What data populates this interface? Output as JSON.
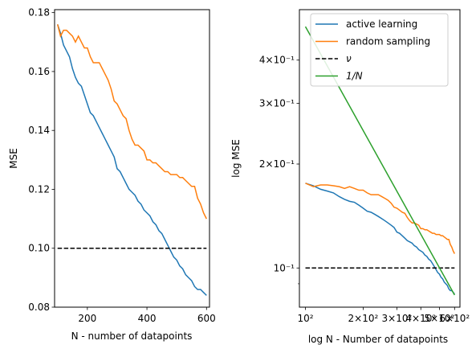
{
  "chart_data": [
    {
      "type": "line",
      "xlabel": "N - number of datapoints",
      "ylabel": "MSE",
      "xlim": [
        90,
        610
      ],
      "ylim": [
        0.08,
        0.181
      ],
      "xticks": [
        200,
        400,
        600
      ],
      "xtick_labels": [
        "200",
        "400",
        "600"
      ],
      "yticks": [
        0.08,
        0.1,
        0.12,
        0.14,
        0.16,
        0.18
      ],
      "ytick_labels": [
        "0.08",
        "0.10",
        "0.12",
        "0.14",
        "0.16",
        "0.18"
      ],
      "series": [
        {
          "name": "active learning",
          "color": "#1f77b4",
          "style": "solid",
          "x": [
            100,
            110,
            120,
            130,
            140,
            150,
            160,
            170,
            180,
            190,
            200,
            210,
            220,
            230,
            240,
            250,
            260,
            270,
            280,
            290,
            300,
            310,
            320,
            330,
            340,
            350,
            360,
            370,
            380,
            390,
            400,
            410,
            420,
            430,
            440,
            450,
            460,
            470,
            480,
            490,
            500,
            510,
            520,
            530,
            540,
            550,
            560,
            570,
            580,
            590,
            600
          ],
          "y": [
            0.176,
            0.173,
            0.169,
            0.167,
            0.165,
            0.161,
            0.158,
            0.156,
            0.155,
            0.152,
            0.149,
            0.146,
            0.145,
            0.143,
            0.141,
            0.139,
            0.137,
            0.135,
            0.133,
            0.131,
            0.127,
            0.126,
            0.124,
            0.122,
            0.12,
            0.119,
            0.118,
            0.116,
            0.115,
            0.113,
            0.112,
            0.111,
            0.109,
            0.108,
            0.106,
            0.105,
            0.103,
            0.101,
            0.099,
            0.097,
            0.096,
            0.094,
            0.093,
            0.091,
            0.09,
            0.089,
            0.087,
            0.086,
            0.086,
            0.085,
            0.084
          ]
        },
        {
          "name": "random sampling",
          "color": "#ff7f0e",
          "style": "solid",
          "x": [
            100,
            110,
            120,
            130,
            140,
            150,
            160,
            170,
            180,
            190,
            200,
            210,
            220,
            230,
            240,
            250,
            260,
            270,
            280,
            290,
            300,
            310,
            320,
            330,
            340,
            350,
            360,
            370,
            380,
            390,
            400,
            410,
            420,
            430,
            440,
            450,
            460,
            470,
            480,
            490,
            500,
            510,
            520,
            530,
            540,
            550,
            560,
            570,
            580,
            590,
            600
          ],
          "y": [
            0.176,
            0.172,
            0.174,
            0.174,
            0.173,
            0.172,
            0.17,
            0.172,
            0.17,
            0.168,
            0.168,
            0.165,
            0.163,
            0.163,
            0.163,
            0.161,
            0.159,
            0.157,
            0.154,
            0.15,
            0.149,
            0.147,
            0.145,
            0.144,
            0.14,
            0.137,
            0.135,
            0.135,
            0.134,
            0.133,
            0.13,
            0.13,
            0.129,
            0.129,
            0.128,
            0.127,
            0.126,
            0.126,
            0.125,
            0.125,
            0.125,
            0.124,
            0.124,
            0.123,
            0.122,
            0.121,
            0.121,
            0.117,
            0.115,
            0.112,
            0.11
          ]
        },
        {
          "name": "ν",
          "color": "#000000",
          "style": "dashed",
          "x": [
            100,
            600
          ],
          "y": [
            0.1,
            0.1
          ]
        }
      ]
    },
    {
      "type": "line",
      "xscale": "log",
      "yscale": "log",
      "xlabel": "log N - Number of datapoints",
      "ylabel": "log MSE",
      "xlim": [
        93,
        640
      ],
      "ylim": [
        0.077,
        0.56
      ],
      "xticks": [
        100,
        200,
        300,
        400,
        500,
        600
      ],
      "xtick_labels": [
        "10²",
        "2×10²",
        "3×10²",
        "4×10²",
        "5×10²",
        "6×10²"
      ],
      "yticks": [
        0.1,
        0.2,
        0.3,
        0.4
      ],
      "ytick_labels": [
        "10⁻¹",
        "2×10⁻¹",
        "3×10⁻¹",
        "4×10⁻¹"
      ],
      "legend": {
        "position": "top-right",
        "entries": [
          {
            "label": "active learning",
            "color": "#1f77b4",
            "style": "solid"
          },
          {
            "label": "random sampling",
            "color": "#ff7f0e",
            "style": "solid"
          },
          {
            "label": "ν",
            "color": "#000000",
            "style": "dashed"
          },
          {
            "label": "1/N",
            "color": "#2ca02c",
            "style": "solid"
          }
        ]
      },
      "series": [
        {
          "name": "active learning",
          "color": "#1f77b4",
          "style": "solid",
          "x": [
            100,
            110,
            120,
            130,
            140,
            150,
            160,
            170,
            180,
            190,
            200,
            210,
            220,
            230,
            240,
            250,
            260,
            270,
            280,
            290,
            300,
            310,
            320,
            330,
            340,
            350,
            360,
            370,
            380,
            390,
            400,
            410,
            420,
            430,
            440,
            450,
            460,
            470,
            480,
            490,
            500,
            510,
            520,
            530,
            540,
            550,
            560,
            570,
            580,
            590,
            600
          ],
          "y": [
            0.176,
            0.173,
            0.169,
            0.167,
            0.165,
            0.161,
            0.158,
            0.156,
            0.155,
            0.152,
            0.149,
            0.146,
            0.145,
            0.143,
            0.141,
            0.139,
            0.137,
            0.135,
            0.133,
            0.131,
            0.127,
            0.126,
            0.124,
            0.122,
            0.12,
            0.119,
            0.118,
            0.116,
            0.115,
            0.113,
            0.112,
            0.111,
            0.109,
            0.108,
            0.106,
            0.105,
            0.103,
            0.101,
            0.099,
            0.097,
            0.096,
            0.094,
            0.093,
            0.091,
            0.09,
            0.089,
            0.087,
            0.086,
            0.086,
            0.085,
            0.084
          ]
        },
        {
          "name": "random sampling",
          "color": "#ff7f0e",
          "style": "solid",
          "x": [
            100,
            110,
            120,
            130,
            140,
            150,
            160,
            170,
            180,
            190,
            200,
            210,
            220,
            230,
            240,
            250,
            260,
            270,
            280,
            290,
            300,
            310,
            320,
            330,
            340,
            350,
            360,
            370,
            380,
            390,
            400,
            410,
            420,
            430,
            440,
            450,
            460,
            470,
            480,
            490,
            500,
            510,
            520,
            530,
            540,
            550,
            560,
            570,
            580,
            590,
            600
          ],
          "y": [
            0.176,
            0.172,
            0.174,
            0.174,
            0.173,
            0.172,
            0.17,
            0.172,
            0.17,
            0.168,
            0.168,
            0.165,
            0.163,
            0.163,
            0.163,
            0.161,
            0.159,
            0.157,
            0.154,
            0.15,
            0.149,
            0.147,
            0.145,
            0.144,
            0.14,
            0.137,
            0.135,
            0.135,
            0.134,
            0.133,
            0.13,
            0.13,
            0.129,
            0.129,
            0.128,
            0.127,
            0.126,
            0.126,
            0.125,
            0.125,
            0.125,
            0.124,
            0.124,
            0.123,
            0.122,
            0.121,
            0.121,
            0.117,
            0.115,
            0.112,
            0.11
          ]
        },
        {
          "name": "ν",
          "color": "#000000",
          "style": "dashed",
          "x": [
            100,
            600
          ],
          "y": [
            0.1,
            0.1
          ]
        },
        {
          "name": "1/N",
          "color": "#2ca02c",
          "style": "solid",
          "x": [
            100,
            600
          ],
          "y": [
            0.5,
            0.0835
          ]
        }
      ]
    }
  ]
}
